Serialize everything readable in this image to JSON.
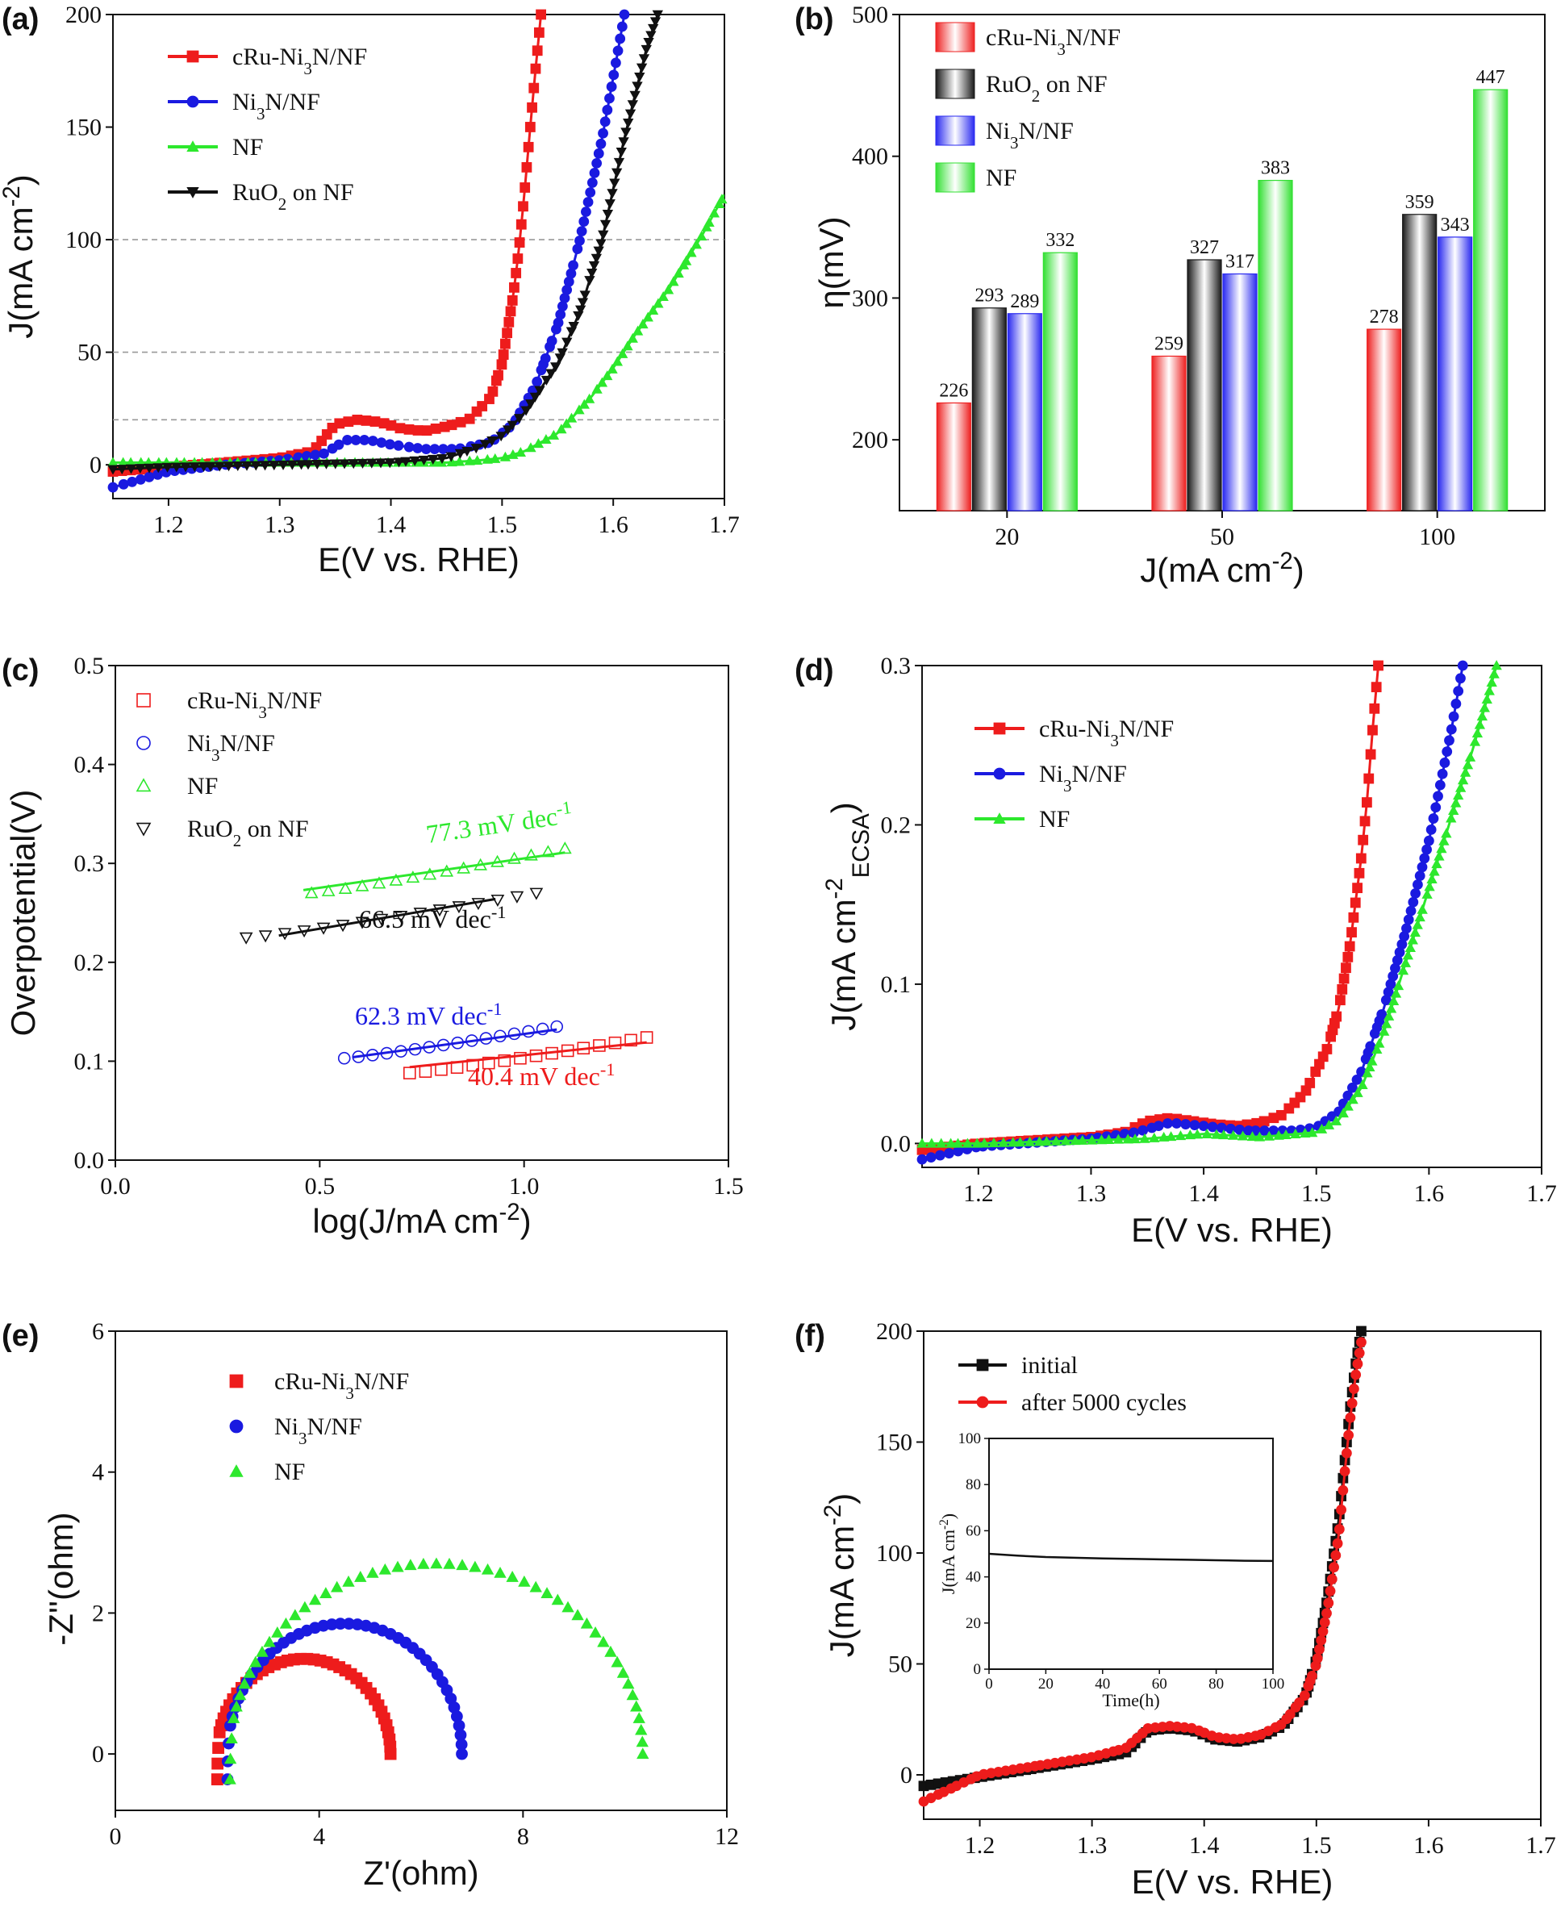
{
  "chart_data": [
    {
      "panel": "(a)",
      "type": "line",
      "xlabel": "E(V vs. RHE)",
      "ylabel": "J(mA cm^-2)",
      "xlim": [
        1.15,
        1.7
      ],
      "ylim": [
        -15,
        200
      ],
      "xticks": [
        1.2,
        1.3,
        1.4,
        1.5,
        1.6,
        1.7
      ],
      "yticks": [
        0,
        50,
        100,
        150,
        200
      ],
      "reference_lines_y": [
        20,
        50,
        100
      ],
      "legend": "top-left",
      "series": [
        {
          "name": "cRu-Ni3N/NF",
          "color": "#ee1c1c",
          "marker": "square",
          "x": [
            1.15,
            1.2,
            1.25,
            1.3,
            1.33,
            1.35,
            1.37,
            1.39,
            1.41,
            1.43,
            1.45,
            1.47,
            1.49,
            1.5,
            1.51,
            1.515,
            1.52,
            1.525,
            1.53,
            1.535
          ],
          "y": [
            -3,
            -1,
            1,
            3,
            6,
            18,
            20,
            19,
            16,
            15,
            17,
            20,
            30,
            45,
            75,
            95,
            120,
            148,
            175,
            200
          ]
        },
        {
          "name": "Ni3N/NF",
          "color": "#1a1ae0",
          "marker": "circle",
          "x": [
            1.15,
            1.2,
            1.25,
            1.3,
            1.34,
            1.36,
            1.38,
            1.4,
            1.43,
            1.46,
            1.49,
            1.51,
            1.53,
            1.55,
            1.57,
            1.59,
            1.6,
            1.61
          ],
          "y": [
            -10,
            -3,
            0,
            2,
            5,
            11,
            11,
            9,
            7,
            7,
            10,
            18,
            35,
            62,
            100,
            145,
            172,
            200
          ]
        },
        {
          "name": "NF",
          "color": "#2de82d",
          "marker": "triangle-up",
          "x": [
            1.15,
            1.2,
            1.3,
            1.4,
            1.45,
            1.48,
            1.5,
            1.52,
            1.55,
            1.58,
            1.6,
            1.62,
            1.65,
            1.68,
            1.7
          ],
          "y": [
            1,
            1,
            1,
            1,
            1,
            2,
            3,
            6,
            14,
            30,
            43,
            58,
            78,
            102,
            120
          ]
        },
        {
          "name": "RuO2 on NF",
          "color": "#111111",
          "marker": "triangle-down",
          "x": [
            1.15,
            1.2,
            1.3,
            1.4,
            1.45,
            1.48,
            1.5,
            1.52,
            1.55,
            1.57,
            1.59,
            1.61,
            1.63,
            1.64
          ],
          "y": [
            -2,
            -1,
            0,
            1,
            3,
            8,
            13,
            23,
            45,
            68,
            100,
            145,
            185,
            200
          ]
        }
      ]
    },
    {
      "panel": "(b)",
      "type": "bar",
      "xlabel": "J(mA cm^-2)",
      "ylabel": "η(mV)",
      "categories": [
        "20",
        "50",
        "100"
      ],
      "ylim": [
        150,
        500
      ],
      "yticks": [
        200,
        300,
        400,
        500
      ],
      "legend": "top-left",
      "series": [
        {
          "name": "cRu-Ni3N/NF",
          "color": "#ee2222",
          "values": [
            226,
            259,
            278
          ]
        },
        {
          "name": "RuO2 on NF",
          "color": "#1a1a1a",
          "values": [
            293,
            327,
            359
          ]
        },
        {
          "name": "Ni3N/NF",
          "color": "#2a2af0",
          "values": [
            289,
            317,
            343
          ]
        },
        {
          "name": "NF",
          "color": "#33e033",
          "values": [
            332,
            383,
            447
          ]
        }
      ]
    },
    {
      "panel": "(c)",
      "type": "scatter",
      "xlabel": "log(J/mA cm^-2)",
      "ylabel": "Overpotential(V)",
      "xlim": [
        0.0,
        1.5
      ],
      "ylim": [
        0.0,
        0.5
      ],
      "xticks": [
        0.0,
        0.5,
        1.0,
        1.5
      ],
      "yticks": [
        0.0,
        0.1,
        0.2,
        0.3,
        0.4,
        0.5
      ],
      "legend": "top-left",
      "series": [
        {
          "name": "cRu-Ni3N/NF",
          "color": "#ee1c1c",
          "marker": "open-square",
          "x_range": [
            0.72,
            1.3
          ],
          "y_range": [
            0.088,
            0.124
          ],
          "fit": {
            "x": [
              0.72,
              1.3
            ],
            "y": [
              0.094,
              0.119
            ]
          }
        },
        {
          "name": "Ni3N/NF",
          "color": "#1a1ae0",
          "marker": "open-circle",
          "x_range": [
            0.56,
            1.08
          ],
          "y_range": [
            0.103,
            0.135
          ],
          "fit": {
            "x": [
              0.58,
              1.08
            ],
            "y": [
              0.104,
              0.132
            ]
          }
        },
        {
          "name": "NF",
          "color": "#2de82d",
          "marker": "open-triangle-up",
          "x_range": [
            0.48,
            1.1
          ],
          "y_range": [
            0.27,
            0.315
          ],
          "fit": {
            "x": [
              0.46,
              1.1
            ],
            "y": [
              0.273,
              0.311
            ]
          }
        },
        {
          "name": "RuO2 on NF",
          "color": "#111111",
          "marker": "open-triangle-down",
          "x_range": [
            0.32,
            1.03
          ],
          "y_range": [
            0.225,
            0.27
          ],
          "fit": {
            "x": [
              0.4,
              0.93
            ],
            "y": [
              0.227,
              0.264
            ]
          }
        }
      ],
      "annotations": [
        {
          "text": "77.3 mV dec",
          "sup": "-1",
          "color": "#2de82d"
        },
        {
          "text": "66.5 mV dec",
          "sup": "-1",
          "color": "#111111"
        },
        {
          "text": "62.3 mV dec",
          "sup": "-1",
          "color": "#1a1ae0"
        },
        {
          "text": "40.4 mV dec",
          "sup": "-1",
          "color": "#ee1c1c"
        }
      ]
    },
    {
      "panel": "(d)",
      "type": "line",
      "xlabel": "E(V vs. RHE)",
      "ylabel": "J(mA cm^-2 ECSA)",
      "xlim": [
        1.15,
        1.7
      ],
      "ylim": [
        -0.015,
        0.3
      ],
      "xticks": [
        1.2,
        1.3,
        1.4,
        1.5,
        1.6,
        1.7
      ],
      "yticks": [
        0.0,
        0.1,
        0.2,
        0.3
      ],
      "legend": "top-left",
      "series": [
        {
          "name": "cRu-Ni3N/NF",
          "color": "#ee1c1c",
          "marker": "square",
          "x": [
            1.15,
            1.2,
            1.25,
            1.3,
            1.33,
            1.35,
            1.37,
            1.39,
            1.41,
            1.43,
            1.45,
            1.47,
            1.49,
            1.51,
            1.52,
            1.53,
            1.54,
            1.545,
            1.55,
            1.555
          ],
          "y": [
            -0.004,
            0.0,
            0.002,
            0.004,
            0.007,
            0.014,
            0.016,
            0.014,
            0.012,
            0.011,
            0.013,
            0.018,
            0.032,
            0.06,
            0.085,
            0.125,
            0.18,
            0.215,
            0.26,
            0.3
          ]
        },
        {
          "name": "Ni3N/NF",
          "color": "#1a1ae0",
          "marker": "circle",
          "x": [
            1.15,
            1.2,
            1.3,
            1.34,
            1.37,
            1.4,
            1.44,
            1.48,
            1.5,
            1.52,
            1.54,
            1.56,
            1.58,
            1.6,
            1.61,
            1.62,
            1.63
          ],
          "y": [
            -0.01,
            -0.002,
            0.003,
            0.007,
            0.013,
            0.011,
            0.008,
            0.008,
            0.01,
            0.02,
            0.045,
            0.085,
            0.135,
            0.19,
            0.225,
            0.26,
            0.3
          ]
        },
        {
          "name": "NF",
          "color": "#2de82d",
          "marker": "triangle-up",
          "x": [
            1.15,
            1.2,
            1.3,
            1.35,
            1.4,
            1.45,
            1.5,
            1.52,
            1.54,
            1.56,
            1.58,
            1.6,
            1.62,
            1.64,
            1.66
          ],
          "y": [
            0.0,
            0.0,
            0.002,
            0.003,
            0.006,
            0.004,
            0.007,
            0.015,
            0.035,
            0.07,
            0.115,
            0.16,
            0.205,
            0.25,
            0.3
          ]
        }
      ]
    },
    {
      "panel": "(e)",
      "type": "scatter",
      "xlabel": "Z'(ohm)",
      "ylabel": "-Z''(ohm)",
      "xlim": [
        0,
        12
      ],
      "ylim": [
        -0.8,
        6
      ],
      "xticks": [
        0,
        4,
        8,
        12
      ],
      "yticks": [
        0,
        2,
        4,
        6
      ],
      "legend": "top-left",
      "series": [
        {
          "name": "cRu-Ni3N/NF",
          "color": "#ee1c1c",
          "marker": "square",
          "center_x": 3.7,
          "radius": 1.7,
          "peak_y": 1.35,
          "x_end": 5.4
        },
        {
          "name": "Ni3N/NF",
          "color": "#1a1ae0",
          "marker": "circle",
          "center_x": 4.5,
          "radius": 2.3,
          "peak_y": 1.85,
          "x_end": 6.8
        },
        {
          "name": "NF",
          "color": "#2de82d",
          "marker": "triangle-up",
          "center_x": 6.3,
          "radius": 4.05,
          "peak_y": 2.7,
          "x_end": 10.4
        }
      ]
    },
    {
      "panel": "(f)",
      "type": "line",
      "xlabel": "E(V vs. RHE)",
      "ylabel": "J(mA cm^-2)",
      "xlim": [
        1.15,
        1.7
      ],
      "ylim": [
        -20,
        200
      ],
      "xticks": [
        1.2,
        1.3,
        1.4,
        1.5,
        1.6,
        1.7
      ],
      "yticks": [
        0,
        50,
        100,
        150,
        200
      ],
      "legend": "top-left",
      "series": [
        {
          "name": "initial",
          "color": "#111111",
          "marker": "square",
          "x": [
            1.15,
            1.2,
            1.25,
            1.3,
            1.33,
            1.35,
            1.37,
            1.39,
            1.41,
            1.43,
            1.45,
            1.47,
            1.49,
            1.5,
            1.51,
            1.52,
            1.525,
            1.53,
            1.535,
            1.54
          ],
          "y": [
            -5,
            -1,
            3,
            7,
            10,
            20,
            21,
            20,
            16,
            15,
            17,
            22,
            35,
            52,
            80,
            115,
            140,
            165,
            185,
            200
          ]
        },
        {
          "name": "after 5000 cycles",
          "color": "#ee1c1c",
          "marker": "circle",
          "x": [
            1.15,
            1.2,
            1.25,
            1.3,
            1.33,
            1.35,
            1.37,
            1.39,
            1.41,
            1.43,
            1.45,
            1.47,
            1.49,
            1.5,
            1.51,
            1.52,
            1.525,
            1.53,
            1.535,
            1.54
          ],
          "y": [
            -12,
            0,
            4,
            8,
            12,
            21,
            22,
            21,
            17,
            16,
            18,
            23,
            36,
            50,
            75,
            108,
            135,
            160,
            180,
            195
          ]
        }
      ],
      "inset": {
        "type": "line",
        "xlabel": "Time(h)",
        "ylabel": "J(mA cm^-2)",
        "xlim": [
          0,
          100
        ],
        "ylim": [
          0,
          100
        ],
        "xticks": [
          0,
          20,
          40,
          60,
          80,
          100
        ],
        "yticks": [
          0,
          20,
          40,
          60,
          80,
          100
        ],
        "x": [
          0,
          10,
          20,
          30,
          40,
          50,
          60,
          70,
          80,
          90,
          100
        ],
        "y": [
          50,
          49.2,
          48.6,
          48.3,
          48.0,
          47.8,
          47.6,
          47.4,
          47.2,
          47.0,
          46.9
        ]
      }
    }
  ]
}
